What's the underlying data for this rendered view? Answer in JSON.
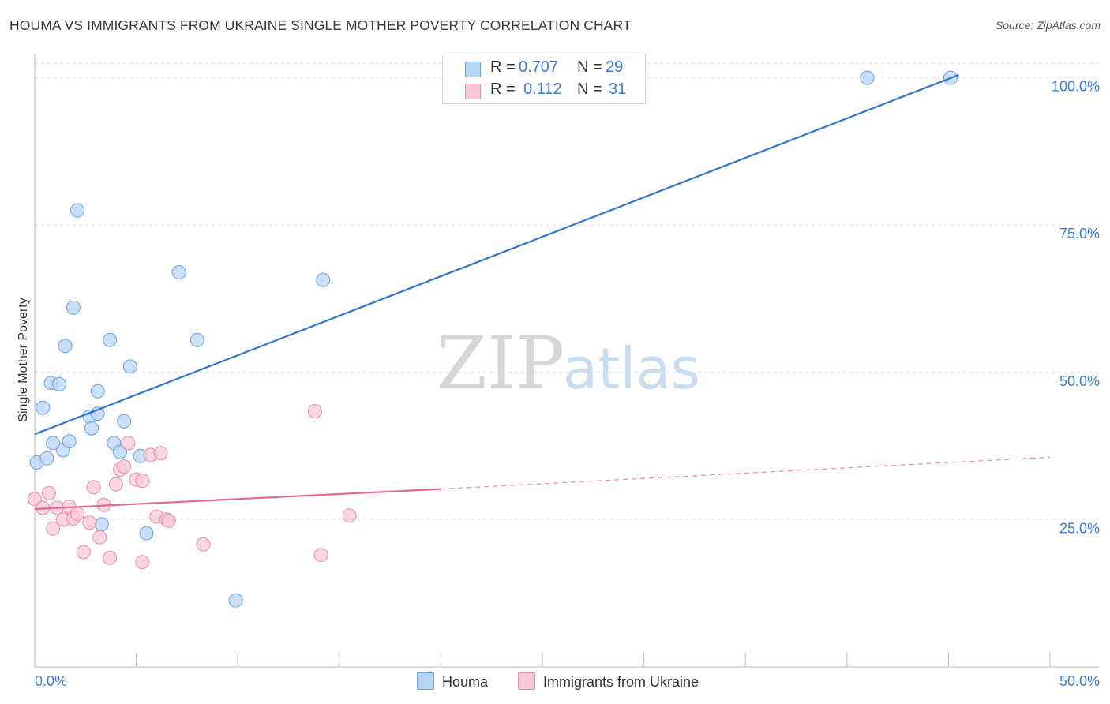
{
  "title": "HOUMA VS IMMIGRANTS FROM UKRAINE SINGLE MOTHER POVERTY CORRELATION CHART",
  "source": "Source: ZipAtlas.com",
  "watermark": {
    "zip": "ZIP",
    "atlas": "atlas"
  },
  "legend": {
    "rows": [
      {
        "r_label": "R =",
        "r_value": "0.707",
        "n_label": "N =",
        "n_value": "29"
      },
      {
        "r_label": "R =",
        "r_value": "0.112",
        "n_label": "N =",
        "n_value": "31"
      }
    ]
  },
  "colors": {
    "houma_fill": "#b8d4f5",
    "houma_stroke": "#6fa0dc",
    "houma_line": "#2f74d0",
    "ukraine_fill": "#f8c8d6",
    "ukraine_stroke": "#e88aa8",
    "ukraine_line": "#e06a93",
    "tick_label": "#3b7dd8",
    "grid": "#e3e3e3"
  },
  "chart_data": {
    "type": "scatter",
    "title": "HOUMA VS IMMIGRANTS FROM UKRAINE SINGLE MOTHER POVERTY CORRELATION CHART",
    "xlabel": "",
    "ylabel": "Single Mother Poverty",
    "xlim": [
      0,
      50
    ],
    "ylim": [
      0,
      102.5
    ],
    "x_tick_labels": [
      "0.0%",
      "50.0%"
    ],
    "y_ticks": [
      25,
      50,
      75,
      100
    ],
    "y_tick_labels": [
      "25.0%",
      "50.0%",
      "75.0%",
      "100.0%"
    ],
    "grid": true,
    "legend_position": "top-center",
    "series": [
      {
        "name": "Houma",
        "points": [
          [
            0.1,
            34.7
          ],
          [
            0.4,
            44.0
          ],
          [
            0.6,
            35.4
          ],
          [
            0.8,
            48.2
          ],
          [
            0.9,
            38.0
          ],
          [
            1.2,
            48.0
          ],
          [
            1.4,
            36.8
          ],
          [
            1.5,
            54.5
          ],
          [
            1.7,
            38.3
          ],
          [
            1.9,
            61.0
          ],
          [
            2.1,
            77.5
          ],
          [
            2.7,
            42.5
          ],
          [
            2.8,
            40.5
          ],
          [
            3.1,
            43.0
          ],
          [
            3.1,
            46.8
          ],
          [
            3.3,
            24.2
          ],
          [
            3.7,
            55.5
          ],
          [
            3.9,
            38.0
          ],
          [
            4.2,
            36.5
          ],
          [
            4.4,
            41.7
          ],
          [
            4.7,
            51.0
          ],
          [
            5.2,
            35.8
          ],
          [
            5.5,
            22.7
          ],
          [
            7.1,
            67.0
          ],
          [
            8.0,
            55.5
          ],
          [
            9.9,
            11.3
          ],
          [
            14.2,
            65.7
          ],
          [
            41.0,
            100.0
          ],
          [
            45.1,
            100.0
          ]
        ],
        "trendline": {
          "x": [
            0,
            45.5
          ],
          "y": [
            39.5,
            100.5
          ]
        }
      },
      {
        "name": "Immigrants from Ukraine",
        "points": [
          [
            0.0,
            28.5
          ],
          [
            0.4,
            27.0
          ],
          [
            0.7,
            29.5
          ],
          [
            0.9,
            23.5
          ],
          [
            1.1,
            27.0
          ],
          [
            1.4,
            25.0
          ],
          [
            1.7,
            27.2
          ],
          [
            1.9,
            25.2
          ],
          [
            2.1,
            26.0
          ],
          [
            2.4,
            19.5
          ],
          [
            2.7,
            24.5
          ],
          [
            2.9,
            30.5
          ],
          [
            3.2,
            22.0
          ],
          [
            3.4,
            27.5
          ],
          [
            3.7,
            18.5
          ],
          [
            4.0,
            31.0
          ],
          [
            4.2,
            33.5
          ],
          [
            4.4,
            34.0
          ],
          [
            4.6,
            38.0
          ],
          [
            5.0,
            31.8
          ],
          [
            5.3,
            31.6
          ],
          [
            5.3,
            17.8
          ],
          [
            5.7,
            36.0
          ],
          [
            6.0,
            25.5
          ],
          [
            6.2,
            36.3
          ],
          [
            6.5,
            25.0
          ],
          [
            6.6,
            24.8
          ],
          [
            8.3,
            20.8
          ],
          [
            13.8,
            43.4
          ],
          [
            14.1,
            19.0
          ],
          [
            15.5,
            25.7
          ]
        ],
        "trendline": {
          "x": [
            0,
            20
          ],
          "y": [
            26.8,
            30.2
          ]
        },
        "trendline_dashed": {
          "x": [
            20,
            50
          ],
          "y": [
            30.2,
            35.6
          ]
        }
      }
    ]
  },
  "bottom_legend": {
    "items": [
      {
        "label": "Houma"
      },
      {
        "label": "Immigrants from Ukraine"
      }
    ]
  }
}
